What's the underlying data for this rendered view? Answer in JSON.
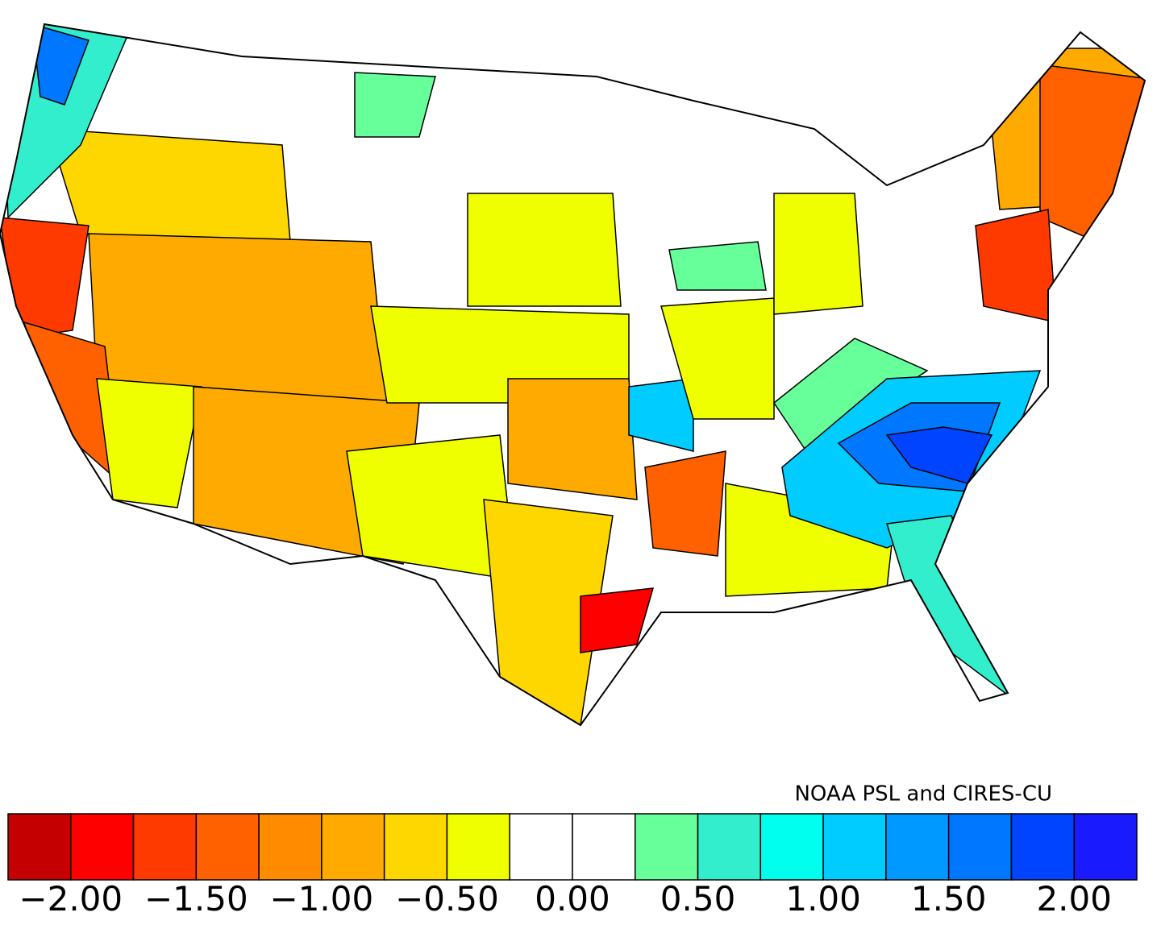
{
  "credit": "NOAA PSL and CIRES-CU",
  "colorbar": {
    "colors": [
      "#c40000",
      "#ff0000",
      "#ff3a00",
      "#ff6000",
      "#ff8c00",
      "#ffaa00",
      "#ffd700",
      "#f0ff00",
      "#ffffff",
      "#ffffff",
      "#66ff99",
      "#33eecc",
      "#00ffee",
      "#00ccff",
      "#0099ff",
      "#0077ff",
      "#0044ff",
      "#1a1aff"
    ],
    "levels": [
      -2.0,
      -1.75,
      -1.5,
      -1.25,
      -1.0,
      -0.75,
      -0.5,
      -0.25,
      0.0,
      0.25,
      0.5,
      0.75,
      1.0,
      1.25,
      1.5,
      1.75,
      2.0
    ],
    "ticks": [
      {
        "value": -2.0,
        "label": "−2.00"
      },
      {
        "value": -1.5,
        "label": "−1.50"
      },
      {
        "value": -1.0,
        "label": "−1.00"
      },
      {
        "value": -0.5,
        "label": "−0.50"
      },
      {
        "value": 0.0,
        "label": "0.00"
      },
      {
        "value": 0.5,
        "label": "0.50"
      },
      {
        "value": 1.0,
        "label": "1.00"
      },
      {
        "value": 1.5,
        "label": "1.50"
      },
      {
        "value": 2.0,
        "label": "2.00"
      }
    ]
  }
}
